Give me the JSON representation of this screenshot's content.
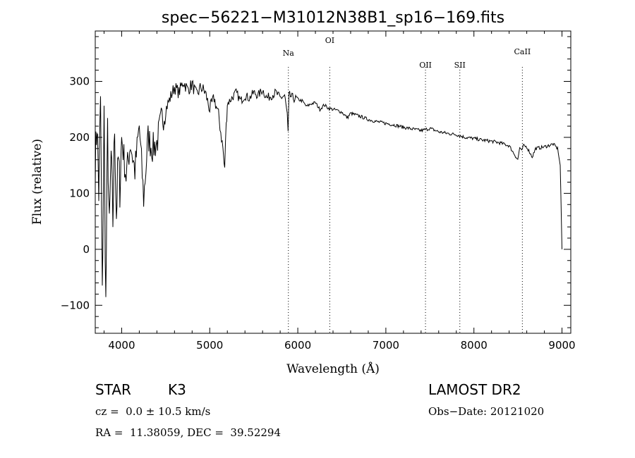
{
  "chart_data": {
    "type": "line",
    "title": "spec−56221−M31012N38B1_sp16−169.fits",
    "xlabel": "Wavelength (Å)",
    "ylabel": "Flux (relative)",
    "xlim": [
      3700,
      9100
    ],
    "ylim": [
      -150,
      390
    ],
    "x_ticks": [
      4000,
      5000,
      6000,
      7000,
      8000,
      9000
    ],
    "y_ticks": [
      -100,
      0,
      100,
      200,
      300
    ],
    "y_tick_labels": [
      "−100",
      "0",
      "100",
      "200",
      "300"
    ],
    "grid": false,
    "series": [
      {
        "name": "spectrum",
        "x": [
          3700,
          3720,
          3740,
          3760,
          3780,
          3800,
          3820,
          3840,
          3860,
          3880,
          3900,
          3920,
          3940,
          3960,
          3980,
          4000,
          4050,
          4100,
          4150,
          4200,
          4250,
          4300,
          4350,
          4400,
          4450,
          4500,
          4550,
          4600,
          4650,
          4700,
          4750,
          4800,
          4850,
          4900,
          4950,
          5000,
          5050,
          5100,
          5150,
          5170,
          5180,
          5200,
          5250,
          5300,
          5350,
          5400,
          5450,
          5500,
          5550,
          5600,
          5650,
          5700,
          5750,
          5800,
          5850,
          5880,
          5890,
          5900,
          5950,
          6000,
          6050,
          6100,
          6150,
          6200,
          6250,
          6300,
          6350,
          6400,
          6450,
          6500,
          6563,
          6600,
          6700,
          6800,
          6900,
          7000,
          7100,
          7200,
          7300,
          7400,
          7500,
          7600,
          7700,
          7800,
          7900,
          8000,
          8100,
          8200,
          8300,
          8400,
          8498,
          8520,
          8542,
          8560,
          8600,
          8662,
          8700,
          8800,
          8900,
          8950,
          8980,
          9000
        ],
        "values": [
          150,
          230,
          100,
          270,
          -90,
          240,
          -100,
          210,
          30,
          170,
          50,
          220,
          60,
          160,
          110,
          200,
          130,
          190,
          140,
          220,
          90,
          200,
          180,
          190,
          230,
          250,
          270,
          290,
          280,
          300,
          285,
          295,
          275,
          290,
          280,
          250,
          270,
          240,
          180,
          140,
          200,
          260,
          270,
          280,
          265,
          275,
          270,
          280,
          275,
          285,
          270,
          275,
          280,
          270,
          275,
          240,
          205,
          275,
          270,
          268,
          265,
          255,
          260,
          262,
          250,
          258,
          252,
          250,
          248,
          245,
          235,
          243,
          238,
          232,
          228,
          225,
          222,
          218,
          215,
          212,
          216,
          210,
          207,
          205,
          200,
          198,
          195,
          193,
          190,
          185,
          160,
          182,
          175,
          185,
          183,
          165,
          180,
          183,
          188,
          180,
          150,
          0
        ]
      }
    ],
    "line_markers": [
      {
        "label": "Na",
        "x": 5893
      },
      {
        "label": "OI",
        "x": 6363
      },
      {
        "label": "OII",
        "x": 7450
      },
      {
        "label": "SII",
        "x": 7840
      },
      {
        "label": "CaII",
        "x": 8550
      }
    ]
  },
  "info": {
    "object_class": "STAR",
    "subclass": "K3",
    "survey": "LAMOST DR2",
    "redshift": "cz =  0.0 ± 10.5 km/s",
    "obs_date": "Obs−Date: 20121020",
    "coords": "RA =  11.38059, DEC =  39.52294"
  }
}
